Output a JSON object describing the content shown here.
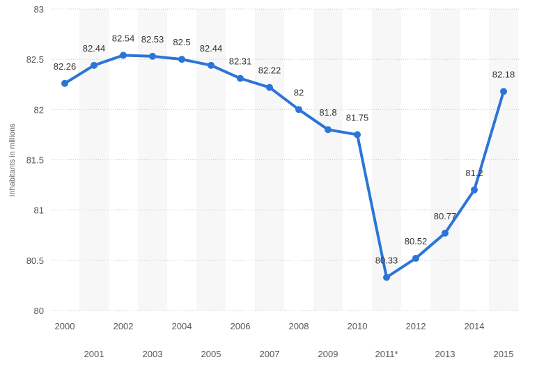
{
  "chart_data": {
    "type": "line",
    "ylabel": "Inhabitants in millions",
    "ylim": [
      80,
      83
    ],
    "yticks": [
      80,
      80.5,
      81,
      81.5,
      82,
      82.5,
      83
    ],
    "grid": true,
    "categories": [
      "2000",
      "2001",
      "2002",
      "2003",
      "2004",
      "2005",
      "2006",
      "2007",
      "2008",
      "2009",
      "2010",
      "2011*",
      "2012",
      "2013",
      "2014",
      "2015"
    ],
    "series": [
      {
        "color": "#2c75d8",
        "values": [
          82.26,
          82.44,
          82.54,
          82.53,
          82.5,
          82.44,
          82.31,
          82.22,
          82,
          81.8,
          81.75,
          80.33,
          80.52,
          80.77,
          81.2,
          82.18
        ]
      }
    ],
    "data_labels": [
      "82.26",
      "82.44",
      "82.54",
      "82.53",
      "82.5",
      "82.44",
      "82.31",
      "82.22",
      "82",
      "81.8",
      "81.75",
      "80.33",
      "80.52",
      "80.77",
      "81.2",
      "82.18"
    ]
  }
}
